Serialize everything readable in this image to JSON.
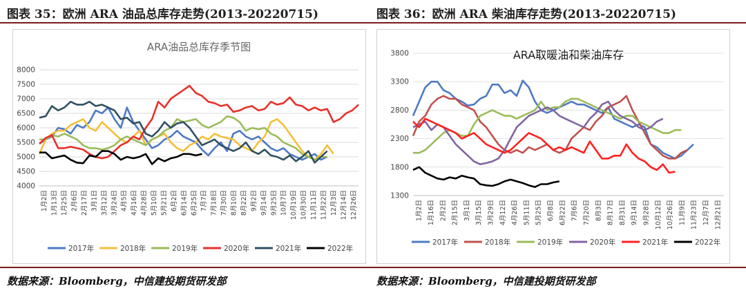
{
  "captions": {
    "left": "图表 35：欧洲 ARA 油品总库存走势(2013-20220715)",
    "right": "图表 36：欧洲 ARA 柴油库存走势(2013-20220715)"
  },
  "source": {
    "left": "数据来源：Bloomberg，中信建投期货研发部",
    "right": "数据来源：Bloomberg，中信建投期货研发部"
  },
  "chart_data": [
    {
      "type": "line",
      "title": "ARA油品总库存季节图",
      "ylim": [
        4000,
        8000
      ],
      "yticks": [
        "8000",
        "7500",
        "7000",
        "6500",
        "6000",
        "5500",
        "5000",
        "4500",
        "4000"
      ],
      "x_tick_labels": [
        "1月2日",
        "1月13日",
        "1月25日",
        "2月6日",
        "2月17日",
        "3月1日",
        "3月12日",
        "3月24日",
        "4月5日",
        "4月16日",
        "4月28日",
        "5月10日",
        "5月21日",
        "6月2日",
        "6月14日",
        "6月25日",
        "7月7日",
        "7月18日",
        "7月30日",
        "8月10日",
        "8月22日",
        "9月2日",
        "9月14日",
        "9月25日",
        "10月7日",
        "10月19日",
        "10月30日",
        "11月11日",
        "11月22日",
        "12月3日",
        "12月14日",
        "12月26日"
      ],
      "series": [
        {
          "name": "2017年",
          "color": "#4e79c4",
          "values": [
            5450,
            5600,
            5700,
            6000,
            5950,
            5800,
            6100,
            6000,
            6200,
            6600,
            6500,
            6700,
            6300,
            6000,
            6700,
            6200,
            5900,
            5600,
            5300,
            5400,
            5600,
            5700,
            5900,
            5700,
            5600,
            5500,
            5250,
            5050,
            5300,
            5500,
            5200,
            5800,
            5900,
            5700,
            5600,
            5700,
            5500,
            5300,
            5200,
            5300,
            5100,
            5000,
            4900,
            5000,
            5100,
            4900,
            5000
          ]
        },
        {
          "name": "2018年",
          "color": "#f4bf3a",
          "values": [
            5100,
            5600,
            5800,
            5900,
            5900,
            6100,
            6200,
            6300,
            6000,
            5900,
            6200,
            6000,
            5800,
            5600,
            5500,
            5700,
            5900,
            5400,
            5600,
            5700,
            5800,
            5500,
            5300,
            5200,
            5400,
            5500,
            5700,
            5600,
            5800,
            5700,
            5650,
            5600,
            5400,
            5300,
            5200,
            5500,
            5700,
            6200,
            6300,
            6100,
            5800,
            5500,
            5200,
            5000,
            4900,
            5100,
            5400,
            5100
          ]
        },
        {
          "name": "2019年",
          "color": "#9bbb59",
          "values": [
            5600,
            5600,
            5750,
            5700,
            5800,
            5700,
            5600,
            5400,
            5300,
            5300,
            5250,
            5300,
            5400,
            5600,
            5700,
            5600,
            5500,
            5400,
            5600,
            5700,
            5900,
            6000,
            6300,
            6200,
            6250,
            6300,
            6100,
            6000,
            6100,
            6200,
            6400,
            6350,
            6200,
            5900,
            6000,
            5950,
            6000,
            5800,
            5700,
            5500,
            5400,
            5300,
            5100,
            5000,
            4900,
            5000,
            5000
          ]
        },
        {
          "name": "2020年",
          "color": "#e8302a",
          "values": [
            5450,
            5650,
            5750,
            5300,
            5300,
            5350,
            5300,
            5250,
            5100,
            5000,
            4950,
            5000,
            5200,
            5400,
            5500,
            5700,
            5600,
            6000,
            6300,
            6900,
            6700,
            7000,
            7150,
            7300,
            7450,
            7200,
            7100,
            6900,
            6850,
            6750,
            6800,
            6550,
            6600,
            6700,
            6750,
            6600,
            6650,
            6900,
            6800,
            6850,
            7050,
            6800,
            6750,
            6600,
            6700,
            6600,
            6650,
            6200,
            6300,
            6500,
            6600,
            6800
          ]
        },
        {
          "name": "2021年",
          "color": "#2f5060",
          "values": [
            6350,
            6400,
            6750,
            6600,
            6700,
            6900,
            6800,
            6800,
            6900,
            6750,
            6800,
            6700,
            6600,
            6300,
            6350,
            6150,
            6200,
            5800,
            5700,
            5900,
            6200,
            6000,
            6150,
            6200,
            6000,
            5700,
            5400,
            5500,
            5600,
            5400,
            5300,
            5200,
            5300,
            5500,
            5200,
            5100,
            5250,
            5050,
            5000,
            4900,
            5050,
            4850,
            5000,
            5200,
            4800,
            5000,
            5200
          ]
        },
        {
          "name": "2022年",
          "color": "#000000",
          "values": [
            5150,
            5150,
            4950,
            5000,
            5050,
            4900,
            4800,
            4780,
            5050,
            5000,
            5200,
            5200,
            5100,
            4900,
            5000,
            4950,
            5000,
            5100,
            4750,
            4950,
            4850,
            4950,
            5000,
            5100,
            5100,
            5050,
            5100
          ]
        }
      ],
      "legend": [
        "2017年",
        "2018年",
        "2019年",
        "2020年",
        "2021年",
        "2022年"
      ],
      "legend_position": "bottom"
    },
    {
      "type": "line",
      "title": "ARA取暖油和柴油库存",
      "ylim": [
        1300,
        3800
      ],
      "yticks": [
        "3800",
        "3300",
        "2800",
        "2300",
        "1800",
        "1300"
      ],
      "x_tick_labels": [
        "1月2日",
        "1月16日",
        "2月2日",
        "2月15日",
        "3月1日",
        "3月15日",
        "3月29日",
        "4月12日",
        "4月26日",
        "5月11日",
        "5月25日",
        "6月8日",
        "6月22日",
        "7月6日",
        "7月20日",
        "8月3日",
        "8月17日",
        "8月31日",
        "9月14日",
        "9月28日",
        "10月12日",
        "10月26日",
        "11月9日",
        "11月23日",
        "12月7日",
        "12月21日"
      ],
      "series": [
        {
          "name": "2017年",
          "color": "#4e79c4",
          "values": [
            2700,
            2950,
            3200,
            3300,
            3300,
            3150,
            3100,
            3000,
            2950,
            2880,
            2900,
            3000,
            3050,
            3250,
            3250,
            3100,
            3150,
            3050,
            3320,
            3200,
            2950,
            2800,
            2750,
            2800,
            2850,
            2900,
            2950,
            2900,
            2900,
            2850,
            2800,
            2750,
            2850,
            2650,
            2600,
            2550,
            2500,
            2550,
            2500,
            2200,
            2150,
            2050,
            2000,
            1950,
            2000,
            2100,
            2200
          ]
        },
        {
          "name": "2018年",
          "color": "#c0504d",
          "values": [
            2350,
            2600,
            2700,
            2900,
            3000,
            3050,
            3000,
            3000,
            2900,
            2850,
            2800,
            2600,
            2500,
            2350,
            2200,
            2100,
            2050,
            2100,
            2050,
            2150,
            2100,
            2150,
            2200,
            2100,
            2050,
            2100,
            2300,
            2400,
            2500,
            2450,
            2600,
            2700,
            2850,
            2900,
            2950,
            3050,
            2800,
            2600,
            2400,
            2200,
            2100,
            2000,
            1950,
            1950,
            2050,
            2100
          ]
        },
        {
          "name": "2019年",
          "color": "#9bbb59",
          "values": [
            2050,
            2050,
            2100,
            2200,
            2300,
            2400,
            2450,
            2400,
            2350,
            2350,
            2550,
            2700,
            2750,
            2800,
            2750,
            2700,
            2700,
            2650,
            2700,
            2750,
            2800,
            2950,
            2800,
            2850,
            2850,
            2950,
            3000,
            3000,
            2950,
            2900,
            2850,
            2800,
            2750,
            2700,
            2650,
            2700,
            2700,
            2600,
            2550,
            2500,
            2450,
            2400,
            2400,
            2450,
            2450
          ]
        },
        {
          "name": "2020年",
          "color": "#8064a2",
          "values": [
            2500,
            2550,
            2600,
            2450,
            2550,
            2500,
            2350,
            2200,
            2100,
            2000,
            1900,
            1850,
            1870,
            1900,
            1950,
            2100,
            2300,
            2500,
            2600,
            2700,
            2750,
            2800,
            2850,
            2800,
            2700,
            2650,
            2600,
            2550,
            2500,
            2650,
            2750,
            2900,
            2950,
            2800,
            2700,
            2650,
            2600,
            2500,
            2450,
            2500,
            2600,
            2650
          ]
        },
        {
          "name": "2021年",
          "color": "#ff2020",
          "values": [
            2600,
            2500,
            2650,
            2600,
            2550,
            2500,
            2450,
            2400,
            2300,
            2350,
            2400,
            2300,
            2200,
            2150,
            2100,
            2050,
            2100,
            2200,
            2300,
            2400,
            2350,
            2300,
            2200,
            2100,
            2150,
            2100,
            2150,
            2100,
            2050,
            2250,
            2100,
            1950,
            1950,
            2000,
            2000,
            2200,
            2050,
            1950,
            1900,
            1800,
            1750,
            1850,
            1700,
            1720
          ]
        },
        {
          "name": "2022年",
          "color": "#000000",
          "values": [
            1750,
            1800,
            1700,
            1650,
            1600,
            1580,
            1620,
            1600,
            1650,
            1620,
            1600,
            1500,
            1480,
            1470,
            1500,
            1550,
            1580,
            1550,
            1520,
            1480,
            1450,
            1500,
            1500,
            1530,
            1550
          ]
        }
      ],
      "legend": [
        "2017年",
        "2018年",
        "2019年",
        "2020年",
        "2021年",
        "2022年"
      ],
      "legend_position": "bottom"
    }
  ]
}
